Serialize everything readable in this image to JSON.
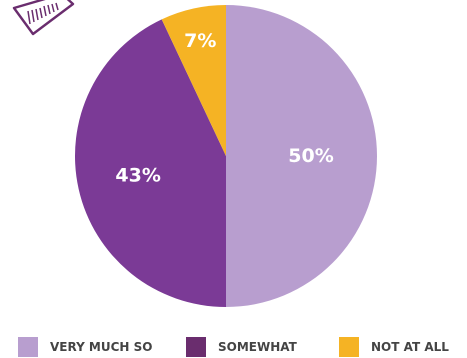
{
  "chart_data": {
    "type": "pie",
    "categories": [
      "VERY MUCH SO",
      "SOMEWHAT",
      "NOT AT ALL"
    ],
    "values": [
      50,
      43,
      7
    ],
    "slice_labels": [
      "50%",
      "43%",
      "7%"
    ],
    "colors": [
      "#b89ecf",
      "#7b3a96",
      "#f5b324"
    ],
    "legend_colors": [
      "#b89ecf",
      "#6a2d6e",
      "#f5b324"
    ],
    "start": "12 o'clock",
    "direction": "clockwise",
    "legend_position": "bottom"
  },
  "decoration": {
    "icon": "striped-graphic-icon",
    "color": "#6a2d6e"
  }
}
